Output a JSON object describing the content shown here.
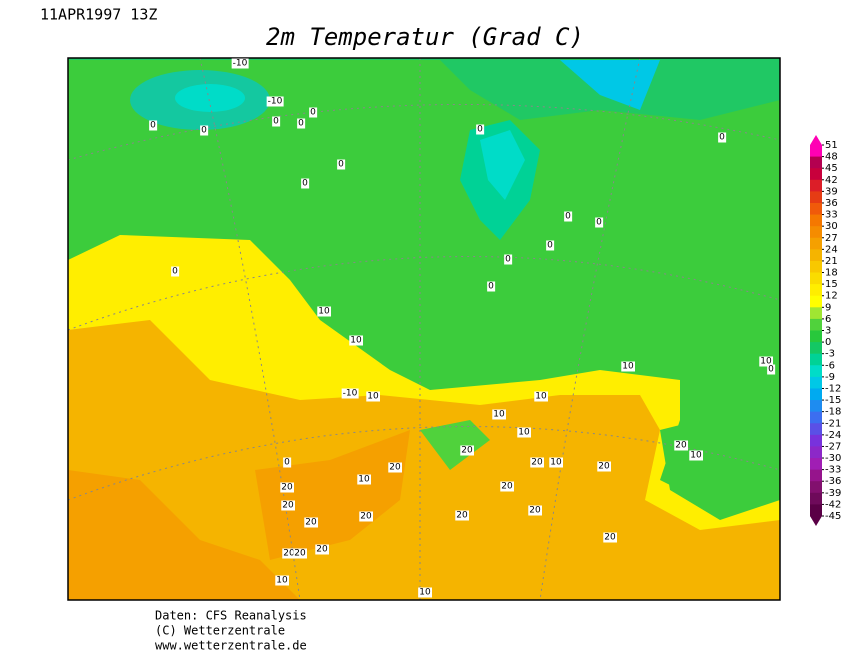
{
  "header": {
    "timestamp": "11APR1997 13Z",
    "title": "2m Temperatur (Grad C)"
  },
  "map": {
    "contour_labels": [
      "-10",
      "-10",
      "0",
      "0",
      "0",
      "0",
      "0",
      "0",
      "0",
      "0",
      "0",
      "0",
      "0",
      "0",
      "0",
      "0",
      "0",
      "10",
      "10",
      "10",
      "10",
      "0",
      "-10",
      "10",
      "10",
      "10",
      "10",
      "20",
      "20",
      "10",
      "0",
      "20",
      "20",
      "10",
      "10",
      "20",
      "20",
      "20",
      "20",
      "20",
      "20",
      "20",
      "20",
      "20",
      "20",
      "20",
      "20",
      "10",
      "20",
      "10"
    ]
  },
  "colorbar": {
    "levels": [
      51,
      48,
      45,
      42,
      39,
      36,
      33,
      30,
      27,
      24,
      21,
      18,
      15,
      12,
      9,
      6,
      3,
      0,
      -3,
      -6,
      -9,
      -12,
      -15,
      -18,
      -21,
      -24,
      -27,
      -30,
      -33,
      -36,
      -39,
      -42,
      -45
    ],
    "colors": [
      "#ff00b4",
      "#b40050",
      "#c8003c",
      "#dc1e28",
      "#e63c14",
      "#f05a0a",
      "#f57800",
      "#f58c00",
      "#f5a000",
      "#f5b400",
      "#f8c800",
      "#fadc00",
      "#ffee00",
      "#ffff00",
      "#a0e632",
      "#50d23c",
      "#28c83c",
      "#14c864",
      "#00d296",
      "#00dcc8",
      "#00c8e6",
      "#00aaf0",
      "#1e8cf0",
      "#3c6ef0",
      "#5a50e6",
      "#7832dc",
      "#8c28c8",
      "#a01eb4",
      "#96148c",
      "#82106e",
      "#6e0a5a",
      "#5a0046"
    ]
  },
  "footer": {
    "lines": [
      "Daten: CFS Reanalysis",
      "(C) Wetterzentrale",
      "www.wetterzentrale.de"
    ]
  }
}
